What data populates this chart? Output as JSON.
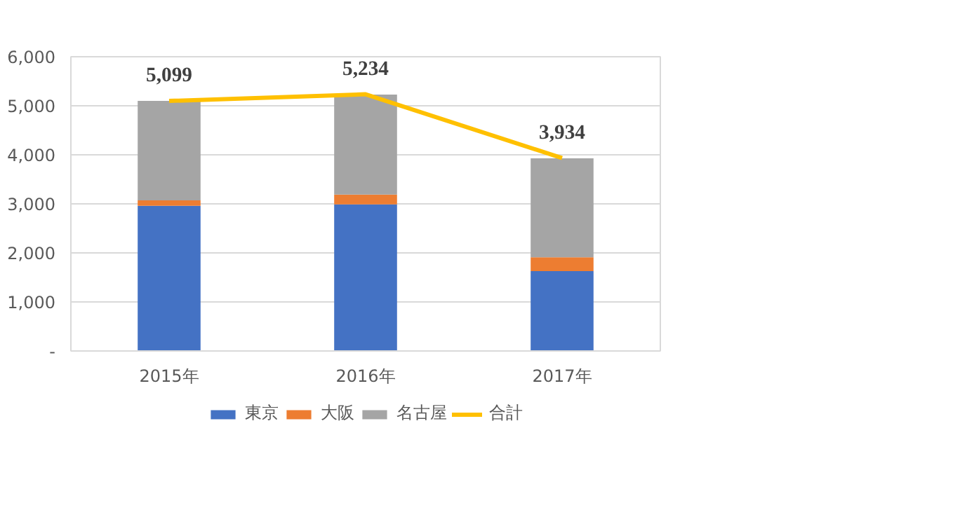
{
  "chart_data": {
    "type": "bar",
    "stacked": true,
    "categories": [
      "2015年",
      "2016年",
      "2017年"
    ],
    "series": [
      {
        "name": "東京",
        "color": "#4472c4",
        "values": [
          2960,
          2990,
          1630
        ]
      },
      {
        "name": "大阪",
        "color": "#ed7d31",
        "values": [
          110,
          200,
          280
        ]
      },
      {
        "name": "名古屋",
        "color": "#a5a5a5",
        "values": [
          2030,
          2040,
          2020
        ]
      },
      {
        "name": "合計",
        "type": "line",
        "color": "#ffc000",
        "values": [
          5099,
          5234,
          3934
        ],
        "value_labels": [
          "5,099",
          "5,234",
          "3,934"
        ]
      }
    ],
    "ylim": [
      0,
      6000
    ],
    "yticks": [
      {
        "value": 0,
        "label": "-"
      },
      {
        "value": 1000,
        "label": "1,000"
      },
      {
        "value": 2000,
        "label": "2,000"
      },
      {
        "value": 3000,
        "label": "3,000"
      },
      {
        "value": 4000,
        "label": "4,000"
      },
      {
        "value": 5000,
        "label": "5,000"
      },
      {
        "value": 6000,
        "label": "6,000"
      }
    ],
    "grid": "y",
    "legend": "bottom"
  }
}
